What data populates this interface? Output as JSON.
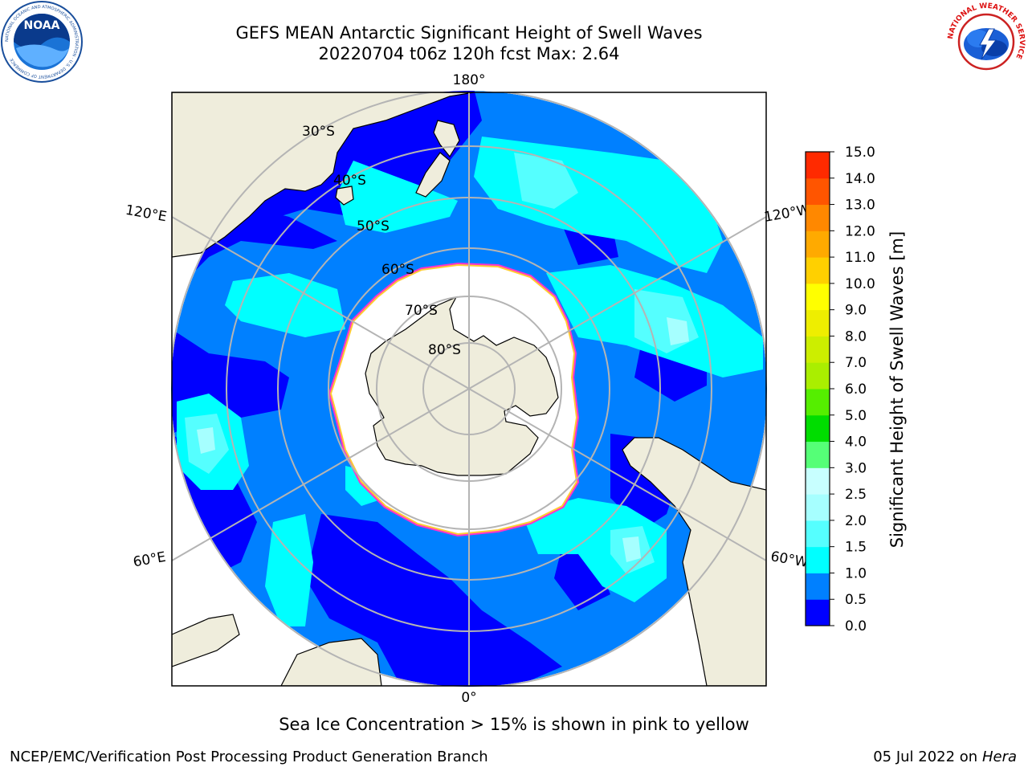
{
  "header": {
    "title_line1": "GEFS MEAN Antarctic Significant Height of Swell Waves",
    "title_line2": "20220704 t06z 120h fcst   Max: 2.64"
  },
  "logos": {
    "noaa": {
      "text": "NOAA",
      "ring_text": "NATIONAL OCEANIC AND ATMOSPHERIC ADMINISTRATION · U.S. DEPARTMENT OF COMMERCE"
    },
    "nws": {
      "ring_text": "NATIONAL WEATHER SERVICE"
    }
  },
  "map": {
    "projection": "south-polar-stereographic",
    "meridian_labels": [
      "180°",
      "120°E",
      "120°W",
      "60°E",
      "60°W",
      "0°"
    ],
    "latitude_labels": [
      "30°S",
      "40°S",
      "50°S",
      "60°S",
      "70°S",
      "80°S"
    ],
    "land_color": "#efeddc",
    "ice_color": "#ffffff",
    "ocean_colors": [
      "#0000ff",
      "#0080ff",
      "#00ffff",
      "#55ffff",
      "#a6ffff"
    ]
  },
  "colorbar": {
    "label": "Significant Height of Swell Waves [m]",
    "ticks": [
      "0.0",
      "0.5",
      "1.0",
      "1.5",
      "2.0",
      "2.5",
      "3.0",
      "4.0",
      "5.0",
      "6.0",
      "7.0",
      "8.0",
      "9.0",
      "10.0",
      "11.0",
      "12.0",
      "13.0",
      "14.0",
      "15.0"
    ],
    "colors": [
      "#0000ff",
      "#0080ff",
      "#00ffff",
      "#55ffff",
      "#a6ffff",
      "#c8ffff",
      "#55ff77",
      "#00dd00",
      "#55ee00",
      "#aaee00",
      "#ccee00",
      "#eeee00",
      "#ffff00",
      "#ffd000",
      "#ffaa00",
      "#ff8800",
      "#ff5500",
      "#ff2a00"
    ]
  },
  "caption": "Sea Ice Concentration > 15% is shown in pink to yellow",
  "footer": {
    "left": "NCEP/EMC/Verification Post Processing Product Generation Branch",
    "date": "05 Jul 2022 on ",
    "host": "Hera"
  }
}
